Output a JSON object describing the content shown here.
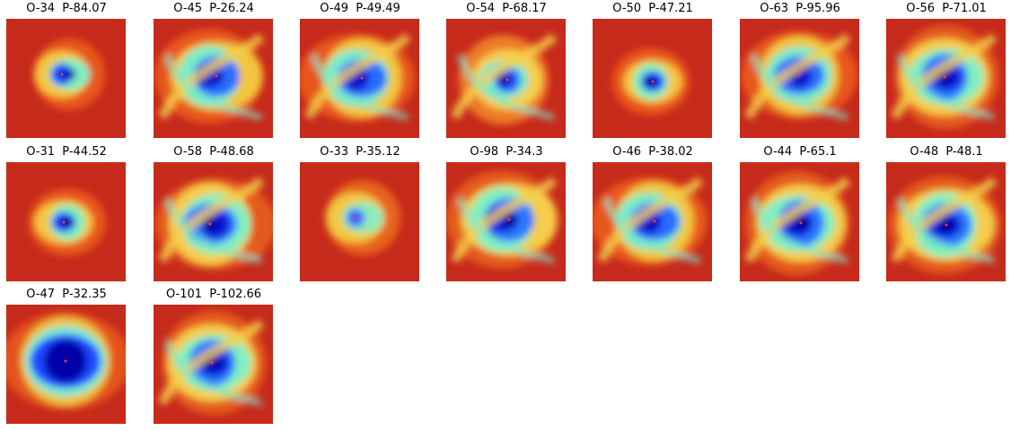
{
  "figure": {
    "background": "#ffffff",
    "colormap": "jet",
    "panels": [
      {
        "title": "O-34  P-84.07",
        "eye": "small"
      },
      {
        "title": "O-45  P-26.24",
        "eye": "spread"
      },
      {
        "title": "O-49  P-49.49",
        "eye": "spread"
      },
      {
        "title": "O-54  P-68.17",
        "eye": "band"
      },
      {
        "title": "O-50  P-47.21",
        "eye": "small"
      },
      {
        "title": "O-63  P-95.96",
        "eye": "spread"
      },
      {
        "title": "O-56  P-71.01",
        "eye": "spiral"
      },
      {
        "title": "O-31  P-44.52",
        "eye": "small"
      },
      {
        "title": "O-58  P-48.68",
        "eye": "spiral"
      },
      {
        "title": "O-33  P-35.12",
        "eye": "weak"
      },
      {
        "title": "O-98  P-34.3",
        "eye": "spiral"
      },
      {
        "title": "O-46  P-38.02",
        "eye": "spread"
      },
      {
        "title": "O-44  P-65.1",
        "eye": "spiral"
      },
      {
        "title": "O-48  P-48.1",
        "eye": "spiral"
      },
      {
        "title": "O-47  P-32.35",
        "eye": "large"
      },
      {
        "title": "O-101  P-102.66",
        "eye": "spiral"
      }
    ]
  }
}
